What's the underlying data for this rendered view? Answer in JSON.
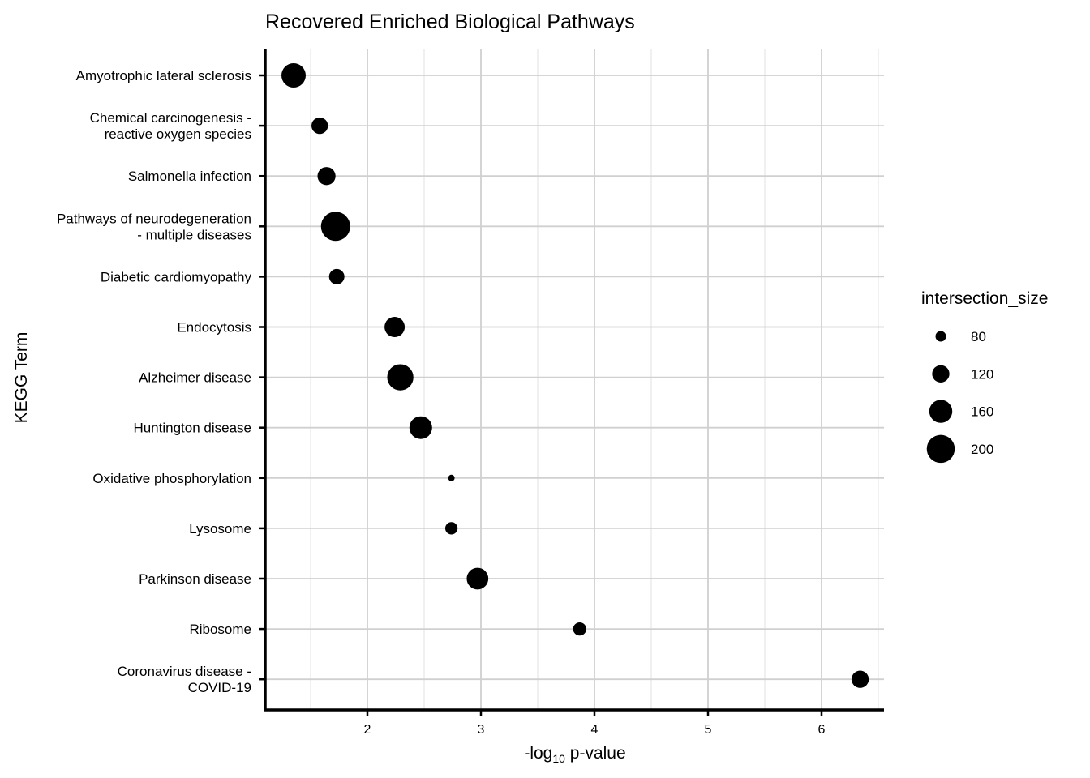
{
  "chart_data": {
    "type": "scatter",
    "title": "Recovered Enriched Biological Pathways",
    "xlabel": "-log10 p-value",
    "xlabel_base": "-log",
    "xlabel_sub": "10",
    "xlabel_rest": " p-value",
    "ylabel": "KEGG Term",
    "xlim": [
      1.1,
      6.55
    ],
    "xticks": [
      "2",
      "3",
      "4",
      "5",
      "6"
    ],
    "grid": true,
    "categories": [
      [
        "Amyotrophic lateral sclerosis"
      ],
      [
        "Chemical carcinogenesis -",
        "reactive oxygen species"
      ],
      [
        "Salmonella infection"
      ],
      [
        "Pathways of neurodegeneration",
        "- multiple diseases"
      ],
      [
        "Diabetic cardiomyopathy"
      ],
      [
        "Endocytosis"
      ],
      [
        "Alzheimer disease"
      ],
      [
        "Huntington disease"
      ],
      [
        "Oxidative phosphorylation"
      ],
      [
        "Lysosome"
      ],
      [
        "Parkinson disease"
      ],
      [
        "Ribosome"
      ],
      [
        "Coronavirus disease -",
        "COVID-19"
      ]
    ],
    "x": [
      1.35,
      1.58,
      1.64,
      1.72,
      1.73,
      2.24,
      2.29,
      2.47,
      2.74,
      2.74,
      2.97,
      3.87,
      6.34
    ],
    "size": [
      170,
      115,
      125,
      210,
      108,
      140,
      185,
      158,
      60,
      90,
      150,
      95,
      120
    ],
    "legend": {
      "title": "intersection_size",
      "entries": [
        {
          "label": "80",
          "value": 80
        },
        {
          "label": "120",
          "value": 120
        },
        {
          "label": "160",
          "value": 160
        },
        {
          "label": "200",
          "value": 200
        }
      ]
    }
  }
}
